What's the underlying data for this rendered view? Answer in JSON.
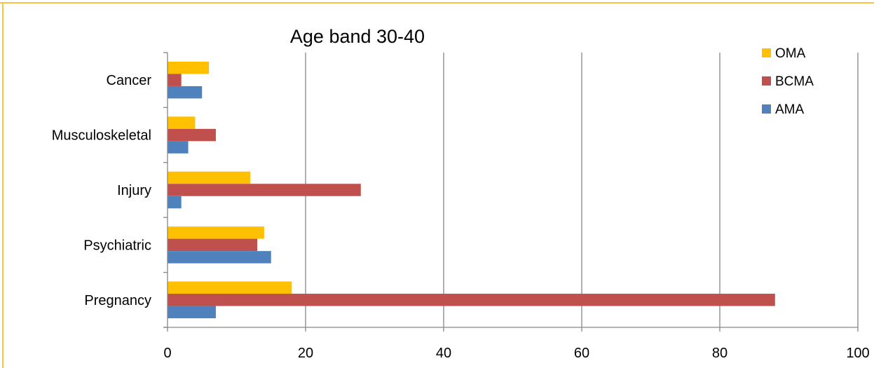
{
  "chart_data": {
    "type": "bar",
    "orientation": "horizontal",
    "title": "Age band 30-40",
    "xlabel": "",
    "ylabel": "",
    "xlim": [
      0,
      100
    ],
    "x_ticks": [
      0,
      20,
      40,
      60,
      80,
      100
    ],
    "grid": true,
    "legend_position": "top-right",
    "categories": [
      "Cancer",
      "Musculoskeletal",
      "Injury",
      "Psychiatric",
      "Pregnancy"
    ],
    "series": [
      {
        "name": "OMA",
        "color": "#ffc000",
        "values": [
          6,
          4,
          12,
          14,
          18
        ]
      },
      {
        "name": "BCMA",
        "color": "#c0504d",
        "values": [
          2,
          7,
          28,
          13,
          88
        ]
      },
      {
        "name": "AMA",
        "color": "#4f81bd",
        "values": [
          5,
          3,
          2,
          15,
          7
        ]
      }
    ]
  }
}
